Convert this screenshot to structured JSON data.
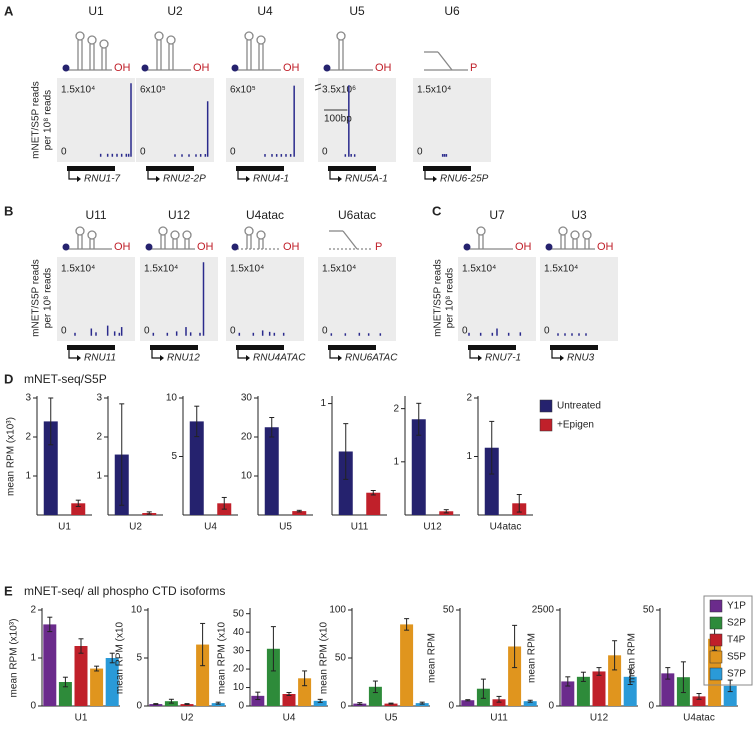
{
  "panel_labels": [
    "A",
    "B",
    "C",
    "D",
    "E"
  ],
  "track_ylabel": [
    "mNET/S5P reads",
    "per 10⁸ reads"
  ],
  "chart_data": [
    {
      "type": "track",
      "title": "U1",
      "ylim": [
        0,
        15000
      ],
      "yticks": [
        {
          "value": 15000,
          "label": "1.5x10⁴"
        },
        0
      ],
      "xlim": [
        0,
        300
      ],
      "x": [
        170,
        200,
        220,
        240,
        260,
        280,
        290,
        300
      ],
      "values": [
        300,
        300,
        300,
        300,
        300,
        300,
        300,
        15000
      ],
      "gene": "RNU1-7",
      "end_label": "OH"
    },
    {
      "type": "track",
      "title": "U2",
      "ylim": [
        0,
        600000
      ],
      "yticks": [
        {
          "value": 600000,
          "label": "6x10⁵"
        },
        0
      ],
      "xlim": [
        0,
        300
      ],
      "x": [
        150,
        180,
        210,
        240,
        260,
        280,
        290
      ],
      "values": [
        8000,
        8000,
        8000,
        8000,
        10000,
        10000,
        450000
      ],
      "gene": "RNU2-2P",
      "end_label": "OH"
    },
    {
      "type": "track",
      "title": "U4",
      "ylim": [
        0,
        600000
      ],
      "yticks": [
        {
          "value": 600000,
          "label": "6x10⁵"
        },
        0
      ],
      "xlim": [
        0,
        300
      ],
      "x": [
        150,
        180,
        200,
        220,
        240,
        260,
        275
      ],
      "values": [
        10000,
        10000,
        10000,
        10000,
        10000,
        10000,
        580000
      ],
      "gene": "RNU4-1",
      "end_label": "OH"
    },
    {
      "type": "track",
      "title": "U5",
      "ylim": [
        0,
        3500000
      ],
      "yticks": [
        {
          "value": 3500000,
          "label": "3.5x10⁶"
        },
        0
      ],
      "xlim": [
        0,
        300
      ],
      "x": [
        100,
        115,
        125,
        140
      ],
      "values": [
        50000,
        3400000,
        60000,
        50000
      ],
      "gene": "RNU5A-1",
      "end_label": "OH",
      "scale_bar": {
        "value": 100,
        "label": "100bp"
      }
    },
    {
      "type": "track",
      "title": "U6",
      "ylim": [
        0,
        15000
      ],
      "yticks": [
        {
          "value": 15000,
          "label": "1.5x10⁴"
        },
        0
      ],
      "xlim": [
        0,
        300
      ],
      "x": [
        110,
        118,
        126
      ],
      "values": [
        250,
        250,
        250
      ],
      "gene": "RNU6-25P",
      "end_label": "P"
    },
    {
      "type": "track",
      "title": "U11",
      "ylim": [
        0,
        15000
      ],
      "yticks": [
        {
          "value": 15000,
          "label": "1.5x10⁴"
        },
        0
      ],
      "xlim": [
        0,
        300
      ],
      "x": [
        60,
        130,
        150,
        200,
        230,
        250,
        260
      ],
      "values": [
        300,
        1200,
        400,
        1800,
        600,
        300,
        1500
      ],
      "gene": "RNU11",
      "end_label": "OH"
    },
    {
      "type": "track",
      "title": "U12",
      "ylim": [
        0,
        15000
      ],
      "yticks": [
        {
          "value": 15000,
          "label": "1.5x10⁴"
        },
        0
      ],
      "xlim": [
        0,
        300
      ],
      "x": [
        40,
        100,
        140,
        180,
        200,
        240,
        255
      ],
      "values": [
        300,
        300,
        600,
        1500,
        400,
        300,
        15000
      ],
      "gene": "RNU12",
      "end_label": "OH"
    },
    {
      "type": "track",
      "title": "U4atac",
      "ylim": [
        0,
        15000
      ],
      "yticks": [
        {
          "value": 15000,
          "label": "1.5x10⁴"
        },
        0
      ],
      "xlim": [
        0,
        300
      ],
      "x": [
        40,
        100,
        140,
        170,
        190,
        230
      ],
      "values": [
        300,
        300,
        800,
        500,
        300,
        300
      ],
      "gene": "RNU4ATAC",
      "end_label": "OH"
    },
    {
      "type": "track",
      "title": "U6atac",
      "ylim": [
        0,
        15000
      ],
      "yticks": [
        {
          "value": 15000,
          "label": "1.5x10⁴"
        },
        0
      ],
      "xlim": [
        0,
        300
      ],
      "x": [
        40,
        100,
        160,
        200,
        250
      ],
      "values": [
        200,
        200,
        300,
        200,
        200
      ],
      "gene": "RNU6ATAC",
      "end_label": "P"
    },
    {
      "type": "track",
      "title": "U7",
      "ylim": [
        0,
        15000
      ],
      "yticks": [
        {
          "value": 15000,
          "label": "1.5x10⁴"
        },
        0
      ],
      "xlim": [
        0,
        300
      ],
      "x": [
        30,
        80,
        130,
        150,
        200,
        250
      ],
      "values": [
        300,
        300,
        300,
        1200,
        300,
        400
      ],
      "gene": "RNU7-1",
      "end_label": "OH"
    },
    {
      "type": "track",
      "title": "U3",
      "ylim": [
        0,
        15000
      ],
      "yticks": [
        {
          "value": 15000,
          "label": "1.5x10⁴"
        },
        0
      ],
      "xlim": [
        0,
        300
      ],
      "x": [
        60,
        90,
        120,
        150,
        180
      ],
      "values": [
        200,
        200,
        200,
        200,
        200
      ],
      "gene": "RNU3",
      "end_label": "OH"
    },
    {
      "type": "bar_multiples",
      "title": "mNET-seq/S5P",
      "categories": [
        "U1",
        "U2",
        "U4",
        "U5",
        "U11",
        "U12",
        "U4atac"
      ],
      "series": [
        {
          "name": "Untreated",
          "color": "#25226e",
          "values": [
            2.4,
            1.55,
            8,
            22.5,
            0.57,
            1.8,
            1.15
          ],
          "errors": [
            0.6,
            1.3,
            1.3,
            2.5,
            0.25,
            0.3,
            0.45
          ]
        },
        {
          "name": "+Epigen",
          "color": "#c0202a",
          "values": [
            0.3,
            0.05,
            1,
            1,
            0.2,
            0.07,
            0.2
          ],
          "errors": [
            0.08,
            0.03,
            0.5,
            0.2,
            0.02,
            0.03,
            0.15
          ]
        }
      ],
      "axes": [
        {
          "ylim": [
            0,
            3
          ],
          "yticks": [
            1,
            2,
            3
          ],
          "ylabel": "mean RPM (x10³)"
        },
        {
          "ylim": [
            0,
            3
          ],
          "yticks": [
            1,
            2,
            3
          ]
        },
        {
          "ylim": [
            0,
            10
          ],
          "yticks": [
            5,
            10
          ]
        },
        {
          "ylim": [
            0,
            30
          ],
          "yticks": [
            10,
            20,
            30
          ]
        },
        {
          "ylim": [
            0,
            1.05
          ],
          "yticks": [
            1
          ]
        },
        {
          "ylim": [
            0,
            2.2
          ],
          "yticks": [
            1,
            2
          ]
        },
        {
          "ylim": [
            0,
            2
          ],
          "yticks": [
            1,
            2
          ]
        }
      ]
    },
    {
      "type": "bar_multiples",
      "title": "mNET-seq/ all phospho CTD isoforms",
      "categories": [
        "U1",
        "U2",
        "U4",
        "U5",
        "U11",
        "U12",
        "U4atac"
      ],
      "series": [
        {
          "name": "Y1P",
          "color": "#6b2b8c",
          "values": [
            1.7,
            0.2,
            5.5,
            2.5,
            3,
            640,
            17
          ],
          "errors": [
            0.15,
            0.05,
            2,
            1,
            0.3,
            120,
            3
          ]
        },
        {
          "name": "S2P",
          "color": "#2e8b3a",
          "values": [
            0.5,
            0.5,
            31,
            20,
            9,
            760,
            15
          ],
          "errors": [
            0.1,
            0.2,
            12,
            6,
            5,
            120,
            8
          ]
        },
        {
          "name": "T4P",
          "color": "#c0202a",
          "values": [
            1.25,
            0.2,
            6.5,
            2.5,
            3.5,
            900,
            5
          ],
          "errors": [
            0.15,
            0.05,
            0.8,
            0.5,
            1.5,
            100,
            1.5
          ]
        },
        {
          "name": "S5P",
          "color": "#e0951e",
          "values": [
            0.78,
            6.4,
            15,
            85,
            31,
            1320,
            35
          ],
          "errors": [
            0.05,
            2.2,
            4,
            6,
            11,
            380,
            6
          ]
        },
        {
          "name": "S7P",
          "color": "#2a9ad8",
          "values": [
            1,
            0.3,
            2.8,
            3,
            2.5,
            760,
            10.5
          ],
          "errors": [
            0.1,
            0.1,
            0.8,
            1,
            0.5,
            200,
            3
          ]
        }
      ],
      "axes": [
        {
          "ylim": [
            0,
            2
          ],
          "yticks": [
            0,
            1,
            2
          ],
          "ylabel": "mean RPM (x10³)"
        },
        {
          "ylim": [
            0,
            10
          ],
          "yticks": [
            0,
            5,
            10
          ],
          "ylabel": "mean RPM (x10"
        },
        {
          "ylim": [
            0,
            52
          ],
          "yticks": [
            0,
            10,
            20,
            30,
            40,
            50
          ],
          "ylabel": "mean RPM (x10"
        },
        {
          "ylim": [
            0,
            100
          ],
          "yticks": [
            0,
            50,
            100
          ],
          "ylabel": "mean RPM (x10"
        },
        {
          "ylim": [
            0,
            50
          ],
          "yticks": [
            0,
            50
          ],
          "ylabel": "mean RPM"
        },
        {
          "ylim": [
            0,
            2500
          ],
          "yticks": [
            0,
            2500
          ],
          "ylabel": "mean RPM"
        },
        {
          "ylim": [
            0,
            50
          ],
          "yticks": [
            0,
            50
          ],
          "ylabel": "mean RPM"
        }
      ]
    }
  ]
}
